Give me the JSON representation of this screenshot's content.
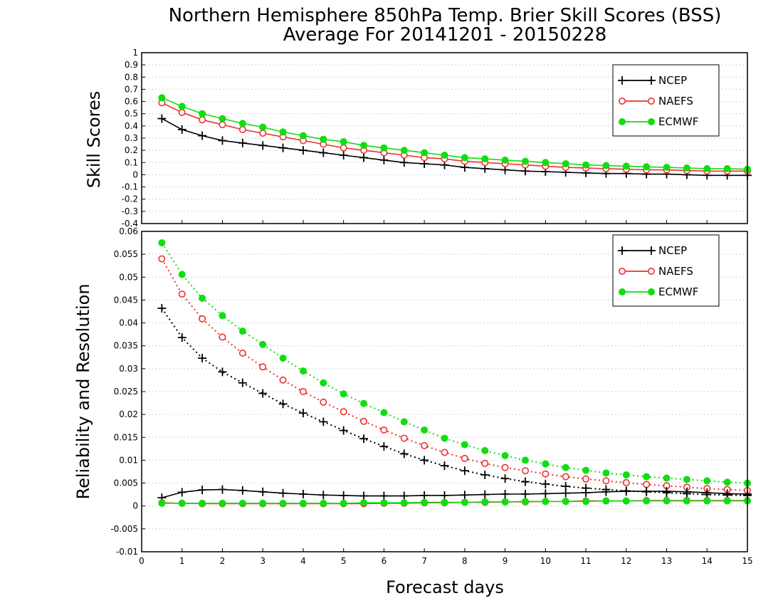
{
  "title": {
    "line1": "Northern Hemisphere 850hPa Temp. Brier Skill Scores (BSS)",
    "line2": "Average For 20141201 - 20150228"
  },
  "x_axis": {
    "label": "Forecast days",
    "ticks": [
      "0",
      "1",
      "2",
      "3",
      "4",
      "5",
      "6",
      "7",
      "8",
      "9",
      "10",
      "11",
      "12",
      "13",
      "14",
      "15"
    ]
  },
  "colors": {
    "NCEP": "#000000",
    "NAEFS": "#ee3030",
    "ECMWF": "#11dd11"
  },
  "chart_data": [
    {
      "type": "line",
      "panel": "top",
      "ylabel": "Skill Scores",
      "ylim": [
        -0.4,
        1
      ],
      "xlim": [
        0,
        15
      ],
      "y_ticks": [
        "-0.4",
        "-0.3",
        "-0.2",
        "-0.1",
        "0",
        "0.1",
        "0.2",
        "0.3",
        "0.4",
        "0.5",
        "0.6",
        "0.7",
        "0.8",
        "0.9",
        "1"
      ],
      "grid": true,
      "legend_position": "top-right",
      "x": [
        0.5,
        1,
        1.5,
        2,
        2.5,
        3,
        3.5,
        4,
        4.5,
        5,
        5.5,
        6,
        6.5,
        7,
        7.5,
        8,
        8.5,
        9,
        9.5,
        10,
        10.5,
        11,
        11.5,
        12,
        12.5,
        13,
        13.5,
        14,
        14.5,
        15
      ],
      "series": [
        {
          "name": "NCEP",
          "marker": "plus",
          "line": "solid",
          "values": [
            0.46,
            0.37,
            0.32,
            0.28,
            0.26,
            0.24,
            0.22,
            0.2,
            0.18,
            0.16,
            0.14,
            0.12,
            0.1,
            0.09,
            0.08,
            0.06,
            0.05,
            0.04,
            0.03,
            0.025,
            0.02,
            0.015,
            0.01,
            0.01,
            0.005,
            0.005,
            0.0,
            -0.005,
            -0.005,
            -0.005
          ]
        },
        {
          "name": "NAEFS",
          "marker": "open-circle",
          "line": "solid",
          "values": [
            0.59,
            0.51,
            0.45,
            0.41,
            0.37,
            0.34,
            0.31,
            0.28,
            0.25,
            0.22,
            0.2,
            0.18,
            0.16,
            0.14,
            0.13,
            0.11,
            0.1,
            0.09,
            0.08,
            0.07,
            0.06,
            0.055,
            0.05,
            0.045,
            0.04,
            0.04,
            0.035,
            0.03,
            0.03,
            0.03
          ]
        },
        {
          "name": "ECMWF",
          "marker": "filled-circle",
          "line": "solid",
          "values": [
            0.63,
            0.56,
            0.5,
            0.46,
            0.42,
            0.39,
            0.35,
            0.32,
            0.29,
            0.27,
            0.24,
            0.22,
            0.2,
            0.18,
            0.16,
            0.14,
            0.13,
            0.12,
            0.11,
            0.1,
            0.09,
            0.08,
            0.075,
            0.07,
            0.065,
            0.06,
            0.055,
            0.05,
            0.05,
            0.045
          ]
        }
      ]
    },
    {
      "type": "line",
      "panel": "bottom",
      "ylabel": "Reliability and Resolution",
      "ylim": [
        -0.01,
        0.06
      ],
      "xlim": [
        0,
        15
      ],
      "y_ticks": [
        "-0.01",
        "-0.005",
        "0",
        "0.005",
        "0.01",
        "0.015",
        "0.02",
        "0.025",
        "0.03",
        "0.035",
        "0.04",
        "0.045",
        "0.05",
        "0.055",
        "0.06"
      ],
      "grid": true,
      "legend_position": "top-right",
      "x": [
        0.5,
        1,
        1.5,
        2,
        2.5,
        3,
        3.5,
        4,
        4.5,
        5,
        5.5,
        6,
        6.5,
        7,
        7.5,
        8,
        8.5,
        9,
        9.5,
        10,
        10.5,
        11,
        11.5,
        12,
        12.5,
        13,
        13.5,
        14,
        14.5,
        15
      ],
      "series": [
        {
          "name": "NCEP",
          "component": "resolution",
          "marker": "plus",
          "line": "dotted",
          "values": [
            0.0432,
            0.0368,
            0.0323,
            0.0293,
            0.0269,
            0.0246,
            0.0223,
            0.0203,
            0.0184,
            0.0165,
            0.0147,
            0.013,
            0.0114,
            0.01,
            0.0088,
            0.0077,
            0.0068,
            0.006,
            0.0053,
            0.0048,
            0.0043,
            0.0039,
            0.0036,
            0.0033,
            0.0031,
            0.0029,
            0.0027,
            0.0025,
            0.0024,
            0.0023
          ]
        },
        {
          "name": "NAEFS",
          "component": "resolution",
          "marker": "open-circle",
          "line": "dotted",
          "values": [
            0.054,
            0.0463,
            0.0409,
            0.0369,
            0.0334,
            0.0304,
            0.0275,
            0.025,
            0.0227,
            0.0206,
            0.0185,
            0.0166,
            0.0148,
            0.0132,
            0.0117,
            0.0104,
            0.0093,
            0.0084,
            0.0077,
            0.007,
            0.0064,
            0.0059,
            0.0055,
            0.0051,
            0.0047,
            0.0044,
            0.0041,
            0.0038,
            0.0036,
            0.0034
          ]
        },
        {
          "name": "ECMWF",
          "component": "resolution",
          "marker": "filled-circle",
          "line": "dotted",
          "values": [
            0.0575,
            0.0506,
            0.0454,
            0.0416,
            0.0382,
            0.0353,
            0.0323,
            0.0295,
            0.0269,
            0.0245,
            0.0224,
            0.0204,
            0.0184,
            0.0166,
            0.0148,
            0.0134,
            0.0121,
            0.011,
            0.01,
            0.0092,
            0.0084,
            0.0078,
            0.0072,
            0.0068,
            0.0064,
            0.0061,
            0.0058,
            0.0055,
            0.0052,
            0.005
          ]
        },
        {
          "name": "NCEP",
          "component": "reliability",
          "marker": "plus",
          "line": "solid",
          "values": [
            0.0018,
            0.003,
            0.0035,
            0.0036,
            0.0034,
            0.0031,
            0.0028,
            0.0026,
            0.0024,
            0.0023,
            0.0022,
            0.0022,
            0.0022,
            0.0023,
            0.0023,
            0.0024,
            0.0025,
            0.0026,
            0.0026,
            0.0027,
            0.0028,
            0.0029,
            0.0031,
            0.0032,
            0.0032,
            0.0032,
            0.0031,
            0.0029,
            0.0027,
            0.0026
          ]
        },
        {
          "name": "NAEFS",
          "component": "reliability",
          "marker": "open-circle",
          "line": "solid",
          "values": [
            0.0007,
            0.0006,
            0.0005,
            0.0005,
            0.0005,
            0.0005,
            0.0005,
            0.0005,
            0.0005,
            0.0005,
            0.0005,
            0.0006,
            0.0006,
            0.0007,
            0.0007,
            0.0008,
            0.0008,
            0.0009,
            0.0009,
            0.001,
            0.001,
            0.0011,
            0.0011,
            0.0011,
            0.0012,
            0.0012,
            0.0012,
            0.0012,
            0.0012,
            0.0012
          ]
        },
        {
          "name": "ECMWF",
          "component": "reliability",
          "marker": "filled-circle",
          "line": "solid",
          "values": [
            0.0006,
            0.0006,
            0.0006,
            0.0006,
            0.0006,
            0.0006,
            0.0006,
            0.0006,
            0.0006,
            0.0006,
            0.0007,
            0.0007,
            0.0007,
            0.0008,
            0.0008,
            0.0008,
            0.0009,
            0.0009,
            0.001,
            0.001,
            0.001,
            0.001,
            0.0011,
            0.0011,
            0.0011,
            0.0011,
            0.0011,
            0.0011,
            0.0011,
            0.0011
          ]
        }
      ]
    }
  ]
}
